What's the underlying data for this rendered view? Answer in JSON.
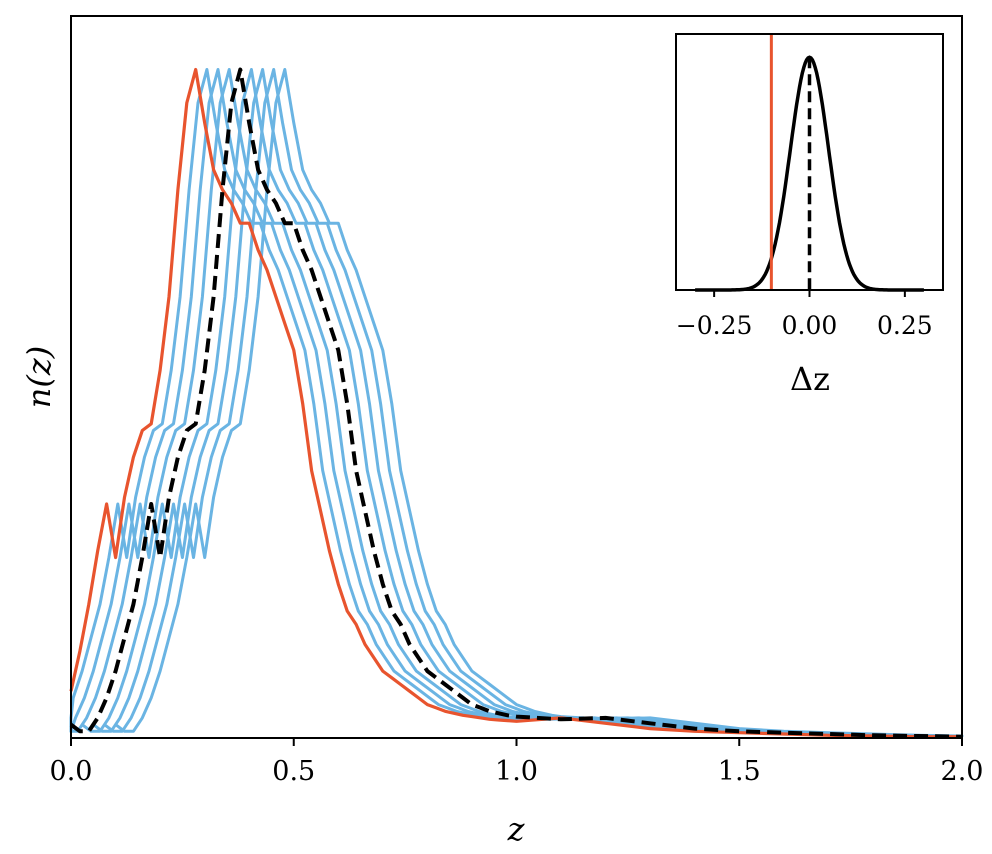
{
  "chart_data": [
    {
      "type": "line",
      "xlabel": "z",
      "ylabel": "n(z)",
      "xlim": [
        0.0,
        2.0
      ],
      "ylim": [
        0,
        1.08
      ],
      "xticks": [
        "0.0",
        "0.5",
        "1.0",
        "1.5",
        "2.0"
      ],
      "yticks_shown": false,
      "x": [
        0.0,
        0.02,
        0.04,
        0.06,
        0.08,
        0.1,
        0.12,
        0.14,
        0.16,
        0.18,
        0.2,
        0.22,
        0.24,
        0.26,
        0.28,
        0.3,
        0.32,
        0.34,
        0.36,
        0.38,
        0.4,
        0.42,
        0.44,
        0.46,
        0.48,
        0.5,
        0.52,
        0.54,
        0.56,
        0.58,
        0.6,
        0.62,
        0.64,
        0.66,
        0.68,
        0.7,
        0.72,
        0.74,
        0.76,
        0.78,
        0.8,
        0.82,
        0.84,
        0.86,
        0.88,
        0.9,
        0.92,
        0.94,
        0.96,
        0.98,
        1.0,
        1.1,
        1.2,
        1.3,
        1.4,
        1.5,
        1.6,
        1.7,
        1.8,
        1.9,
        2.0
      ],
      "series": [
        {
          "role": "shifted",
          "color": "#e8542e",
          "style": "solid",
          "shift": -0.1,
          "values": [
            0.07,
            0.13,
            0.2,
            0.28,
            0.35,
            0.27,
            0.36,
            0.42,
            0.46,
            0.47,
            0.55,
            0.66,
            0.82,
            0.95,
            1.0,
            0.92,
            0.85,
            0.82,
            0.8,
            0.77,
            0.77,
            0.73,
            0.7,
            0.66,
            0.62,
            0.58,
            0.5,
            0.4,
            0.34,
            0.28,
            0.23,
            0.19,
            0.17,
            0.14,
            0.12,
            0.1,
            0.09,
            0.08,
            0.07,
            0.06,
            0.05,
            0.045,
            0.04,
            0.037,
            0.034,
            0.032,
            0.03,
            0.028,
            0.027,
            0.026,
            0.025,
            0.03,
            0.022,
            0.014,
            0.01,
            0.008,
            0.006,
            0.004,
            0.003,
            0.002,
            0.002
          ]
        },
        {
          "role": "reference",
          "color": "#000000",
          "style": "dashed",
          "shift": 0.0,
          "values": [
            0.02,
            0.01,
            0.01,
            0.03,
            0.06,
            0.1,
            0.15,
            0.2,
            0.27,
            0.35,
            0.27,
            0.36,
            0.42,
            0.46,
            0.47,
            0.55,
            0.66,
            0.82,
            0.95,
            1.0,
            0.92,
            0.85,
            0.82,
            0.8,
            0.77,
            0.77,
            0.73,
            0.7,
            0.66,
            0.62,
            0.58,
            0.5,
            0.4,
            0.34,
            0.28,
            0.23,
            0.19,
            0.17,
            0.14,
            0.12,
            0.1,
            0.09,
            0.08,
            0.07,
            0.06,
            0.05,
            0.045,
            0.04,
            0.037,
            0.034,
            0.032,
            0.028,
            0.03,
            0.022,
            0.014,
            0.01,
            0.008,
            0.006,
            0.004,
            0.003,
            0.002
          ]
        }
      ],
      "ensemble": {
        "color": "#6ab4e3",
        "style": "solid",
        "shifts": [
          -0.075,
          -0.05,
          -0.025,
          0.025,
          0.05,
          0.075,
          0.1
        ]
      }
    },
    {
      "type": "line",
      "role": "inset",
      "xlabel": "Δz",
      "xlim": [
        -0.35,
        0.35
      ],
      "ylim": [
        0,
        1.1
      ],
      "xticks": [
        "−0.25",
        "0.00",
        "0.25"
      ],
      "curve": {
        "color": "#000000",
        "mean": 0.0,
        "sigma": 0.05
      },
      "mean_line": {
        "color": "#000000",
        "style": "dashed",
        "x": 0.0
      },
      "shift_line": {
        "color": "#e8542e",
        "style": "solid",
        "x": -0.1
      }
    }
  ]
}
